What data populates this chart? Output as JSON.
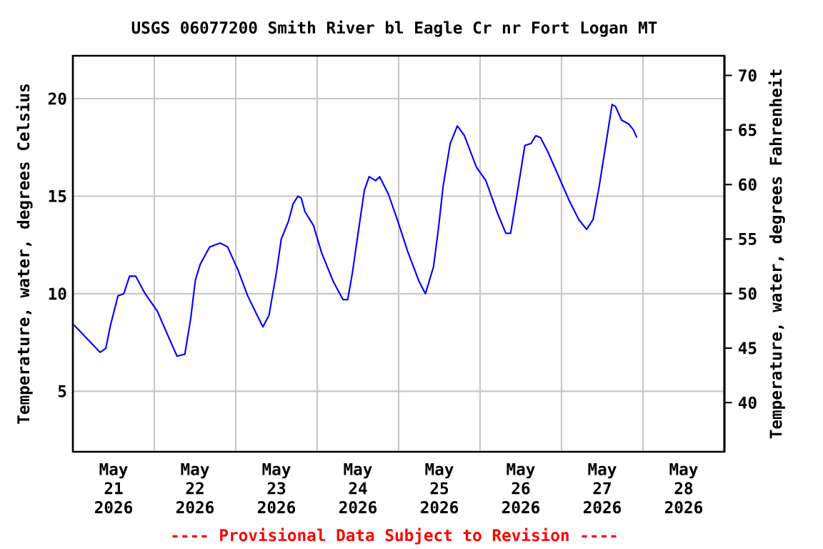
{
  "chart_data": {
    "type": "line",
    "title": "USGS 06077200 Smith River bl Eagle Cr nr Fort Logan MT",
    "ylabel": "Temperature, water, degrees Celsius",
    "y2label": "Temperature, water, degrees Fahrenheit",
    "annotations": [
      "---- Provisional Data Subject to Revision ----"
    ],
    "xlim": [
      "2026-05-21T00:00",
      "2026-05-29T00:00"
    ],
    "xticks": [
      {
        "value": "2026-05-21T12:00",
        "label": "May 21 2026"
      },
      {
        "value": "2026-05-22T12:00",
        "label": "May 22 2026"
      },
      {
        "value": "2026-05-23T12:00",
        "label": "May 23 2026"
      },
      {
        "value": "2026-05-24T12:00",
        "label": "May 24 2026"
      },
      {
        "value": "2026-05-25T12:00",
        "label": "May 25 2026"
      },
      {
        "value": "2026-05-26T12:00",
        "label": "May 26 2026"
      },
      {
        "value": "2026-05-27T12:00",
        "label": "May 27 2026"
      },
      {
        "value": "2026-05-28T12:00",
        "label": "May 28 2026"
      },
      {
        "value": "2026-05-22T00:00",
        "label": null
      },
      {
        "value": "2026-05-23T00:00",
        "label": null
      },
      {
        "value": "2026-05-24T00:00",
        "label": null
      },
      {
        "value": "2026-05-25T00:00",
        "label": null
      },
      {
        "value": "2026-05-26T00:00",
        "label": null
      },
      {
        "value": "2026-05-27T00:00",
        "label": null
      },
      {
        "value": "2026-05-28T00:00",
        "label": null
      }
    ],
    "ylim": [
      1.9,
      22.2
    ],
    "yticks": [
      5,
      10,
      15,
      20
    ],
    "y2lim": [
      35.5,
      71.8
    ],
    "y2ticks": [
      40,
      45,
      50,
      55,
      60,
      65,
      70
    ],
    "grid": true,
    "x": [
      "2026-05-21T00:18",
      "2026-05-21T08:00",
      "2026-05-21T09:42",
      "2026-05-21T11:06",
      "2026-05-21T13:18",
      "2026-05-21T15:00",
      "2026-05-21T16:42",
      "2026-05-21T18:30",
      "2026-05-21T21:18",
      "2026-05-22T00:54",
      "2026-05-22T04:24",
      "2026-05-22T06:42",
      "2026-05-22T09:00",
      "2026-05-22T10:42",
      "2026-05-22T12:06",
      "2026-05-22T13:30",
      "2026-05-22T16:18",
      "2026-05-22T19:24",
      "2026-05-22T21:36",
      "2026-05-23T00:42",
      "2026-05-23T03:30",
      "2026-05-23T06:18",
      "2026-05-23T08:00",
      "2026-05-23T09:48",
      "2026-05-23T12:00",
      "2026-05-23T13:24",
      "2026-05-23T15:30",
      "2026-05-23T16:54",
      "2026-05-23T18:18",
      "2026-05-23T19:18",
      "2026-05-23T20:24",
      "2026-05-23T22:54",
      "2026-05-24T01:18",
      "2026-05-24T04:48",
      "2026-05-24T07:36",
      "2026-05-24T09:00",
      "2026-05-24T10:24",
      "2026-05-24T11:48",
      "2026-05-24T13:54",
      "2026-05-24T15:18",
      "2026-05-24T17:12",
      "2026-05-24T18:24",
      "2026-05-24T21:00",
      "2026-05-24T23:48",
      "2026-05-25T02:36",
      "2026-05-25T06:06",
      "2026-05-25T07:54",
      "2026-05-25T10:18",
      "2026-05-25T11:42",
      "2026-05-25T13:06",
      "2026-05-25T15:12",
      "2026-05-25T17:18",
      "2026-05-25T19:24",
      "2026-05-25T22:54",
      "2026-05-26T01:42",
      "2026-05-26T05:12",
      "2026-05-26T07:36",
      "2026-05-26T09:00",
      "2026-05-26T10:48",
      "2026-05-26T13:12",
      "2026-05-26T15:00",
      "2026-05-26T16:24",
      "2026-05-26T17:48",
      "2026-05-26T19:54",
      "2026-05-26T22:42",
      "2026-05-27T02:12",
      "2026-05-27T05:06",
      "2026-05-27T07:24",
      "2026-05-27T09:18",
      "2026-05-27T11:06",
      "2026-05-27T13:06",
      "2026-05-27T14:54",
      "2026-05-27T15:54",
      "2026-05-27T17:42",
      "2026-05-27T19:48",
      "2026-05-27T21:12",
      "2026-05-27T22:12"
    ],
    "series": [
      {
        "color": "#0000ff",
        "values": [
          8.4,
          7.0,
          7.2,
          8.4,
          9.9,
          10.0,
          10.9,
          10.9,
          10.0,
          9.1,
          7.7,
          6.8,
          6.9,
          8.7,
          10.7,
          11.5,
          12.4,
          12.6,
          12.4,
          11.2,
          9.9,
          8.9,
          8.3,
          8.9,
          11.1,
          12.8,
          13.7,
          14.6,
          15.0,
          14.9,
          14.2,
          13.5,
          12.1,
          10.6,
          9.7,
          9.7,
          11.1,
          12.8,
          15.3,
          16.0,
          15.8,
          16.0,
          15.1,
          13.7,
          12.2,
          10.6,
          10.0,
          11.4,
          13.3,
          15.5,
          17.7,
          18.6,
          18.1,
          16.5,
          15.8,
          14.1,
          13.1,
          13.1,
          15.0,
          17.6,
          17.7,
          18.1,
          18.0,
          17.3,
          16.2,
          14.8,
          13.8,
          13.3,
          13.8,
          15.5,
          17.7,
          19.7,
          19.6,
          18.9,
          18.7,
          18.4,
          18.0
        ]
      }
    ]
  }
}
